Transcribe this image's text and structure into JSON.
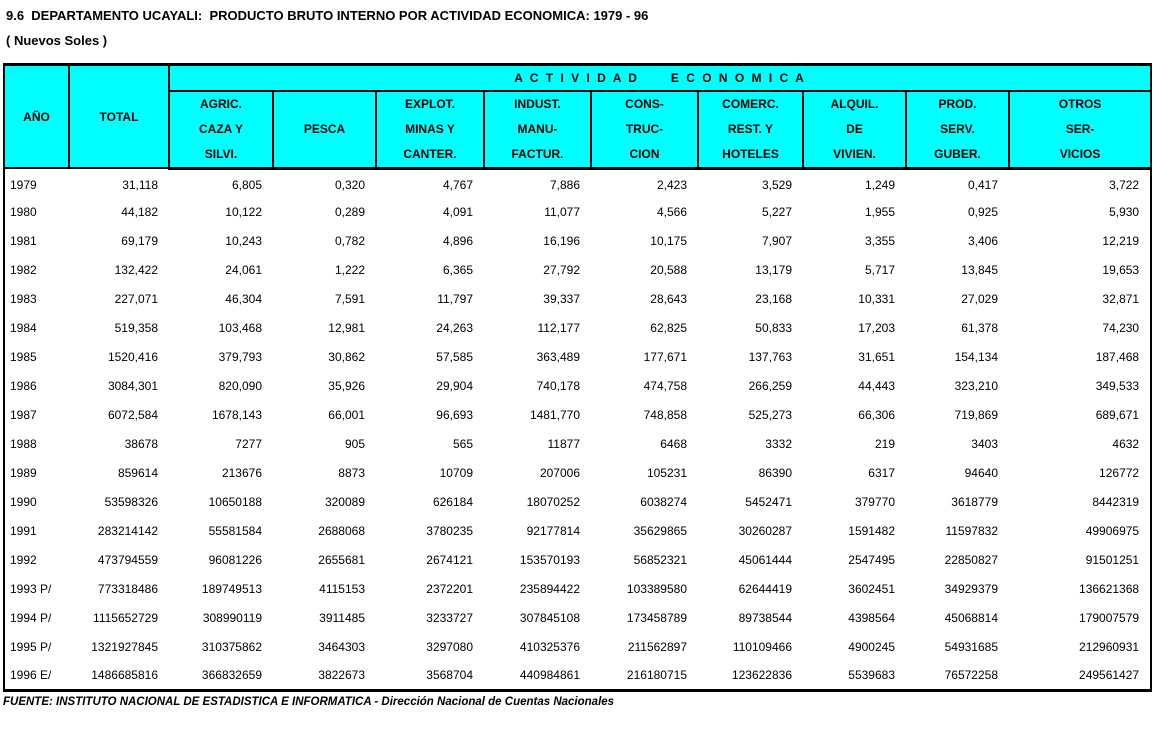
{
  "title": "9.6  DEPARTAMENTO UCAYALI:  PRODUCTO BRUTO INTERNO POR ACTIVIDAD ECONOMICA: 1979 - 96",
  "subtitle": "( Nuevos Soles )",
  "colors": {
    "header_bg": "#00FFFF",
    "border": "#000000",
    "text": "#000000",
    "page_bg": "#FFFFFF"
  },
  "table": {
    "group_header": "A C T I V I D A D      E C O N O M I C A",
    "columns": [
      {
        "id": "ano",
        "lines": [
          "AÑO"
        ]
      },
      {
        "id": "total",
        "lines": [
          "TOTAL"
        ]
      },
      {
        "id": "agric",
        "lines": [
          "AGRIC.",
          "CAZA Y",
          "SILVI."
        ]
      },
      {
        "id": "pesca",
        "lines": [
          "PESCA"
        ]
      },
      {
        "id": "explot",
        "lines": [
          "EXPLOT.",
          "MINAS Y",
          "CANTER."
        ]
      },
      {
        "id": "indust",
        "lines": [
          "INDUST.",
          "MANU-",
          "FACTUR."
        ]
      },
      {
        "id": "cons",
        "lines": [
          "CONS-",
          "TRUC-",
          "CION"
        ]
      },
      {
        "id": "comerc",
        "lines": [
          "COMERC.",
          "REST. Y",
          "HOTELES"
        ]
      },
      {
        "id": "alquil",
        "lines": [
          "ALQUIL.",
          "DE",
          "VIVIEN."
        ]
      },
      {
        "id": "prod",
        "lines": [
          "PROD.",
          "SERV.",
          "GUBER."
        ]
      },
      {
        "id": "otros",
        "lines": [
          "OTROS",
          "SER-",
          "VICIOS"
        ]
      }
    ],
    "rows": [
      [
        "1979",
        "31,118",
        "6,805",
        "0,320",
        "4,767",
        "7,886",
        "2,423",
        "3,529",
        "1,249",
        "0,417",
        "3,722"
      ],
      [
        "1980",
        "44,182",
        "10,122",
        "0,289",
        "4,091",
        "11,077",
        "4,566",
        "5,227",
        "1,955",
        "0,925",
        "5,930"
      ],
      [
        "1981",
        "69,179",
        "10,243",
        "0,782",
        "4,896",
        "16,196",
        "10,175",
        "7,907",
        "3,355",
        "3,406",
        "12,219"
      ],
      [
        "1982",
        "132,422",
        "24,061",
        "1,222",
        "6,365",
        "27,792",
        "20,588",
        "13,179",
        "5,717",
        "13,845",
        "19,653"
      ],
      [
        "1983",
        "227,071",
        "46,304",
        "7,591",
        "11,797",
        "39,337",
        "28,643",
        "23,168",
        "10,331",
        "27,029",
        "32,871"
      ],
      [
        "1984",
        "519,358",
        "103,468",
        "12,981",
        "24,263",
        "112,177",
        "62,825",
        "50,833",
        "17,203",
        "61,378",
        "74,230"
      ],
      [
        "1985",
        "1520,416",
        "379,793",
        "30,862",
        "57,585",
        "363,489",
        "177,671",
        "137,763",
        "31,651",
        "154,134",
        "187,468"
      ],
      [
        "1986",
        "3084,301",
        "820,090",
        "35,926",
        "29,904",
        "740,178",
        "474,758",
        "266,259",
        "44,443",
        "323,210",
        "349,533"
      ],
      [
        "1987",
        "6072,584",
        "1678,143",
        "66,001",
        "96,693",
        "1481,770",
        "748,858",
        "525,273",
        "66,306",
        "719,869",
        "689,671"
      ],
      [
        "1988",
        "38678",
        "7277",
        "905",
        "565",
        "11877",
        "6468",
        "3332",
        "219",
        "3403",
        "4632"
      ],
      [
        "1989",
        "859614",
        "213676",
        "8873",
        "10709",
        "207006",
        "105231",
        "86390",
        "6317",
        "94640",
        "126772"
      ],
      [
        "1990",
        "53598326",
        "10650188",
        "320089",
        "626184",
        "18070252",
        "6038274",
        "5452471",
        "379770",
        "3618779",
        "8442319"
      ],
      [
        "1991",
        "283214142",
        "55581584",
        "2688068",
        "3780235",
        "92177814",
        "35629865",
        "30260287",
        "1591482",
        "11597832",
        "49906975"
      ],
      [
        "1992",
        "473794559",
        "96081226",
        "2655681",
        "2674121",
        "153570193",
        "56852321",
        "45061444",
        "2547495",
        "22850827",
        "91501251"
      ],
      [
        "1993 P/",
        "773318486",
        "189749513",
        "4115153",
        "2372201",
        "235894422",
        "103389580",
        "62644419",
        "3602451",
        "34929379",
        "136621368"
      ],
      [
        "1994 P/",
        "1115652729",
        "308990119",
        "3911485",
        "3233727",
        "307845108",
        "173458789",
        "89738544",
        "4398564",
        "45068814",
        "179007579"
      ],
      [
        "1995 P/",
        "1321927845",
        "310375862",
        "3464303",
        "3297080",
        "410325376",
        "211562897",
        "110109466",
        "4900245",
        "54931685",
        "212960931"
      ],
      [
        "1996 E/",
        "1486685816",
        "366832659",
        "3822673",
        "3568704",
        "440984861",
        "216180715",
        "123622836",
        "5539683",
        "76572258",
        "249561427"
      ]
    ]
  },
  "footer": "FUENTE: INSTITUTO NACIONAL DE ESTADISTICA E INFORMATICA - Dirección Nacional de Cuentas Nacionales"
}
